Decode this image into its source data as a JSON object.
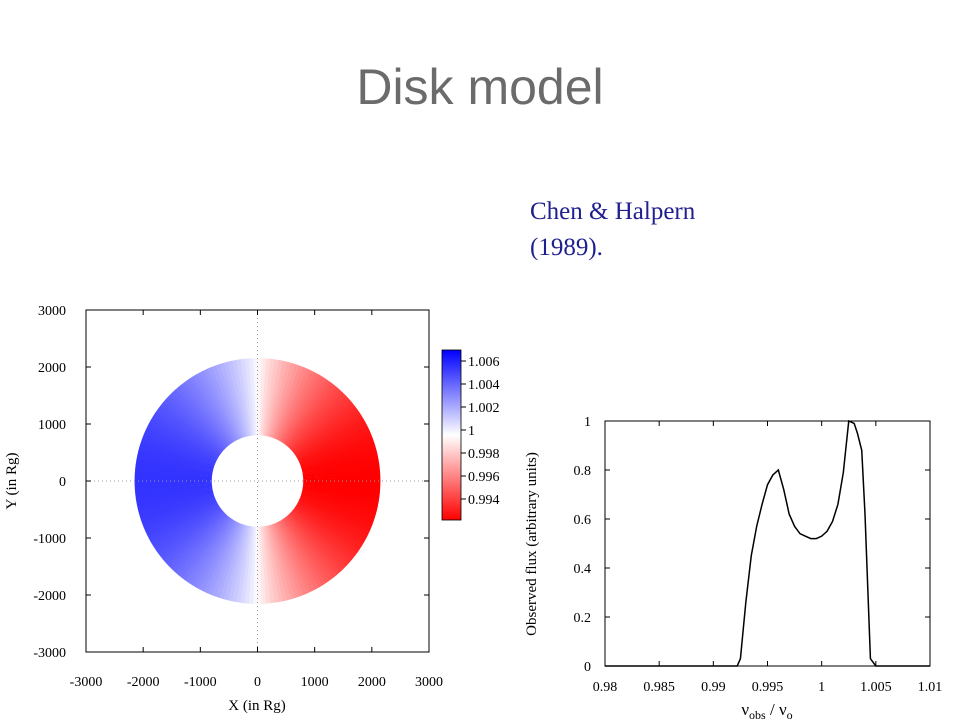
{
  "slide": {
    "title": "Disk model",
    "citation_line1": "Chen & Halpern",
    "citation_line2": "(1989)."
  },
  "chart_data": [
    {
      "type": "heatmap",
      "title": "",
      "xlabel": "X (in Rg)",
      "ylabel": "Y (in Rg)",
      "xlim": [
        -3000,
        3000
      ],
      "ylim": [
        -3000,
        3000
      ],
      "xticks": [
        "-3000",
        "-2000",
        "-1000",
        "0",
        "1000",
        "2000",
        "3000"
      ],
      "yticks": [
        "3000",
        "2000",
        "1000",
        "0",
        "-1000",
        "-2000",
        "-3000"
      ],
      "disk": {
        "inner_radius": 800,
        "outer_radius": 2150
      },
      "colorbar": {
        "labels": [
          "1.006",
          "1.004",
          "1.002",
          "1",
          "0.998",
          "0.996",
          "0.994"
        ],
        "min_color": "#ff0000",
        "mid_color": "#ffffff",
        "max_color": "#0000ff"
      },
      "grid": "dotted zero lines"
    },
    {
      "type": "line",
      "title": "",
      "xlabel_nu": "ν",
      "xlabel_sub1": "obs",
      "xlabel_sep": " / ν",
      "xlabel_sub2": "o",
      "ylabel": "Observed flux (arbitrary units)",
      "xlim": [
        0.98,
        1.01
      ],
      "ylim": [
        0,
        1
      ],
      "xticks": [
        "0.98",
        "0.985",
        "0.99",
        "0.995",
        "1",
        "1.005",
        "1.01"
      ],
      "yticks": [
        "1",
        "0.8",
        "0.6",
        "0.4",
        "0.2",
        "0"
      ],
      "x": [
        0.98,
        0.99,
        0.9922,
        0.9925,
        0.993,
        0.9935,
        0.994,
        0.9945,
        0.995,
        0.9955,
        0.996,
        0.9965,
        0.997,
        0.9975,
        0.998,
        0.9985,
        0.999,
        0.9995,
        1.0,
        1.0005,
        1.001,
        1.0015,
        1.002,
        1.0025,
        1.003,
        1.0033,
        1.0037,
        1.004,
        1.0045,
        1.005,
        1.01
      ],
      "y": [
        0,
        0,
        0,
        0.03,
        0.26,
        0.45,
        0.57,
        0.66,
        0.74,
        0.78,
        0.8,
        0.72,
        0.62,
        0.57,
        0.54,
        0.53,
        0.52,
        0.52,
        0.53,
        0.55,
        0.59,
        0.66,
        0.79,
        1.0,
        0.99,
        0.95,
        0.88,
        0.62,
        0.03,
        0.0,
        0
      ]
    }
  ]
}
